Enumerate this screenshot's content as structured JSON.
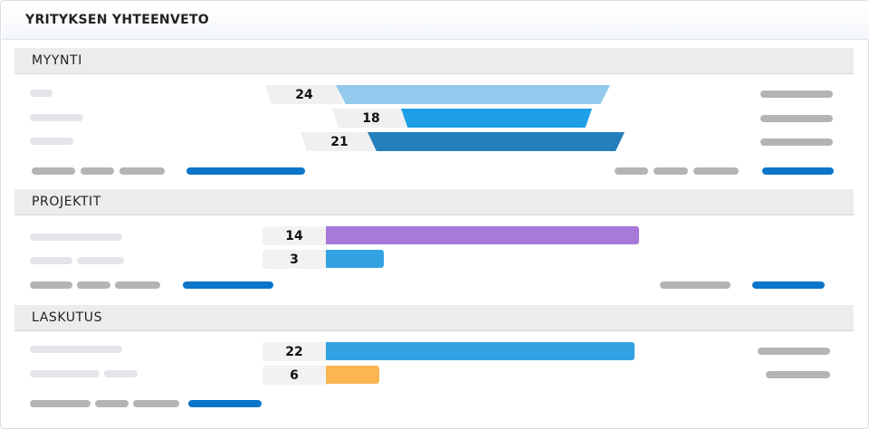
{
  "app": {
    "title": "YRITYKSEN YHTEENVETO"
  },
  "sections": {
    "myynti": {
      "title": "MYYNTI",
      "values": [
        "24",
        "18",
        "21"
      ]
    },
    "projektit": {
      "title": "PROJEKTIT",
      "values": [
        "14",
        "3"
      ]
    },
    "laskutus": {
      "title": "LASKUTUS",
      "values": [
        "22",
        "6"
      ]
    }
  },
  "colors": {
    "myynti": [
      "#93c9ec",
      "#1e9fe8",
      "#2480bd"
    ],
    "projektit": [
      "#a77ad9",
      "#33a2e2"
    ],
    "laskutus": [
      "#33a2e2",
      "#fcb651"
    ],
    "link": "#0b75c9"
  }
}
